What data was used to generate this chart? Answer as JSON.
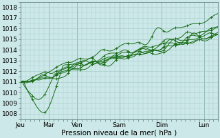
{
  "background_color": "#cce8e8",
  "grid_color": "#aacccc",
  "line_color": "#1a6e1a",
  "title": "Pression niveau de la mer( hPa )",
  "xlabel_days": [
    "Jeu",
    "Mar",
    "Ven",
    "Sam",
    "Dim",
    "Lun"
  ],
  "ylim": [
    1007.5,
    1018.5
  ],
  "xlim": [
    0,
    7
  ],
  "yticks": [
    1008,
    1009,
    1010,
    1011,
    1012,
    1013,
    1014,
    1015,
    1016,
    1017,
    1018
  ],
  "day_positions": [
    0.0,
    1.0,
    2.0,
    3.5,
    5.0,
    6.5
  ],
  "figsize": [
    3.2,
    2.0
  ],
  "dpi": 100
}
